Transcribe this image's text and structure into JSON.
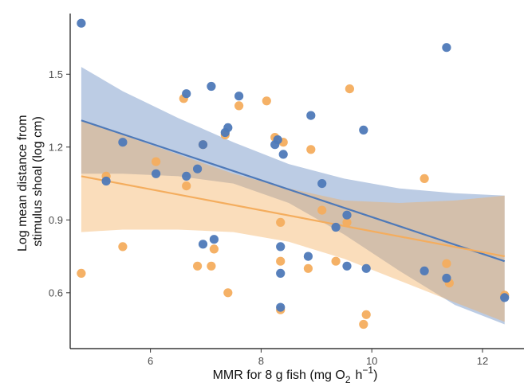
{
  "chart_data": {
    "type": "scatter",
    "title": "",
    "xlabel": {
      "main": "MMR for 8 g fish (mg O",
      "o2_subscript": "2",
      "unit_base": "h",
      "unit_exponent": "−1",
      "close": ")"
    },
    "ylabel": [
      "Log mean distance from",
      "stimulus shoal (log cm)"
    ],
    "xlim": [
      4.55,
      12.75
    ],
    "ylim": [
      0.37,
      1.75
    ],
    "x_ticks": [
      6,
      8,
      10,
      12
    ],
    "y_ticks": [
      0.6,
      0.9,
      1.2,
      1.5
    ],
    "x_tick_labels": [
      "6",
      "8",
      "10",
      "12"
    ],
    "y_tick_labels": [
      "0.6",
      "0.9",
      "1.2",
      "1.5"
    ],
    "grid": false,
    "legend": "none",
    "colors": {
      "blue": "#4e79b8",
      "orange": "#f4ad5e",
      "blue_band": "#4e79b8",
      "orange_band": "#f4ad5e"
    },
    "series": [
      {
        "color_key": "blue",
        "points": [
          [
            4.75,
            1.71
          ],
          [
            5.2,
            1.06
          ],
          [
            5.5,
            1.22
          ],
          [
            6.1,
            1.09
          ],
          [
            6.65,
            1.42
          ],
          [
            6.65,
            1.08
          ],
          [
            6.85,
            1.11
          ],
          [
            6.95,
            1.21
          ],
          [
            6.95,
            0.8
          ],
          [
            7.1,
            1.45
          ],
          [
            7.15,
            0.82
          ],
          [
            7.35,
            1.26
          ],
          [
            7.4,
            1.28
          ],
          [
            7.6,
            1.41
          ],
          [
            8.25,
            1.21
          ],
          [
            8.3,
            1.23
          ],
          [
            8.4,
            1.17
          ],
          [
            8.35,
            0.79
          ],
          [
            8.35,
            0.68
          ],
          [
            8.35,
            0.54
          ],
          [
            8.85,
            0.75
          ],
          [
            8.9,
            1.33
          ],
          [
            9.1,
            1.05
          ],
          [
            9.35,
            0.87
          ],
          [
            9.55,
            0.92
          ],
          [
            9.55,
            0.71
          ],
          [
            9.85,
            1.27
          ],
          [
            9.9,
            0.7
          ],
          [
            10.95,
            0.69
          ],
          [
            11.35,
            0.66
          ],
          [
            11.35,
            1.61
          ],
          [
            12.4,
            0.58
          ]
        ],
        "fit": {
          "x0": 4.75,
          "y0": 1.31,
          "x1": 12.4,
          "y1": 0.73
        },
        "band_upper": [
          [
            4.75,
            1.53
          ],
          [
            5.5,
            1.43
          ],
          [
            6.5,
            1.32
          ],
          [
            7.5,
            1.22
          ],
          [
            8.5,
            1.13
          ],
          [
            9.5,
            1.07
          ],
          [
            10.5,
            1.03
          ],
          [
            11.5,
            1.01
          ],
          [
            12.4,
            1.0
          ]
        ],
        "band_lower": [
          [
            4.75,
            1.09
          ],
          [
            5.5,
            1.09
          ],
          [
            6.5,
            1.08
          ],
          [
            7.5,
            1.05
          ],
          [
            8.5,
            0.97
          ],
          [
            9.5,
            0.84
          ],
          [
            10.5,
            0.69
          ],
          [
            11.5,
            0.55
          ],
          [
            12.4,
            0.47
          ]
        ]
      },
      {
        "color_key": "orange",
        "points": [
          [
            4.75,
            0.68
          ],
          [
            5.2,
            1.08
          ],
          [
            5.5,
            0.79
          ],
          [
            6.1,
            1.14
          ],
          [
            6.6,
            1.4
          ],
          [
            6.65,
            1.04
          ],
          [
            6.85,
            0.71
          ],
          [
            6.95,
            1.21
          ],
          [
            7.1,
            0.71
          ],
          [
            7.15,
            0.78
          ],
          [
            7.35,
            1.25
          ],
          [
            7.4,
            0.6
          ],
          [
            7.6,
            1.37
          ],
          [
            8.1,
            1.39
          ],
          [
            8.25,
            1.24
          ],
          [
            8.35,
            0.89
          ],
          [
            8.35,
            0.73
          ],
          [
            8.35,
            0.53
          ],
          [
            8.4,
            1.22
          ],
          [
            8.85,
            0.7
          ],
          [
            8.9,
            1.19
          ],
          [
            9.1,
            0.94
          ],
          [
            9.35,
            0.73
          ],
          [
            9.55,
            0.89
          ],
          [
            9.6,
            1.44
          ],
          [
            9.85,
            0.47
          ],
          [
            9.9,
            0.51
          ],
          [
            10.95,
            1.07
          ],
          [
            11.35,
            0.72
          ],
          [
            11.4,
            0.64
          ],
          [
            12.4,
            0.59
          ]
        ],
        "fit": {
          "x0": 4.75,
          "y0": 1.08,
          "x1": 12.4,
          "y1": 0.75
        },
        "band_upper": [
          [
            4.75,
            1.31
          ],
          [
            5.5,
            1.25
          ],
          [
            6.5,
            1.17
          ],
          [
            7.5,
            1.09
          ],
          [
            8.5,
            1.03
          ],
          [
            9.5,
            0.98
          ],
          [
            10.5,
            0.97
          ],
          [
            11.5,
            0.98
          ],
          [
            12.4,
            1.0
          ]
        ],
        "band_lower": [
          [
            4.75,
            0.85
          ],
          [
            5.5,
            0.86
          ],
          [
            6.5,
            0.86
          ],
          [
            7.5,
            0.85
          ],
          [
            8.5,
            0.81
          ],
          [
            9.5,
            0.74
          ],
          [
            10.5,
            0.65
          ],
          [
            11.5,
            0.56
          ],
          [
            12.4,
            0.48
          ]
        ]
      }
    ]
  }
}
